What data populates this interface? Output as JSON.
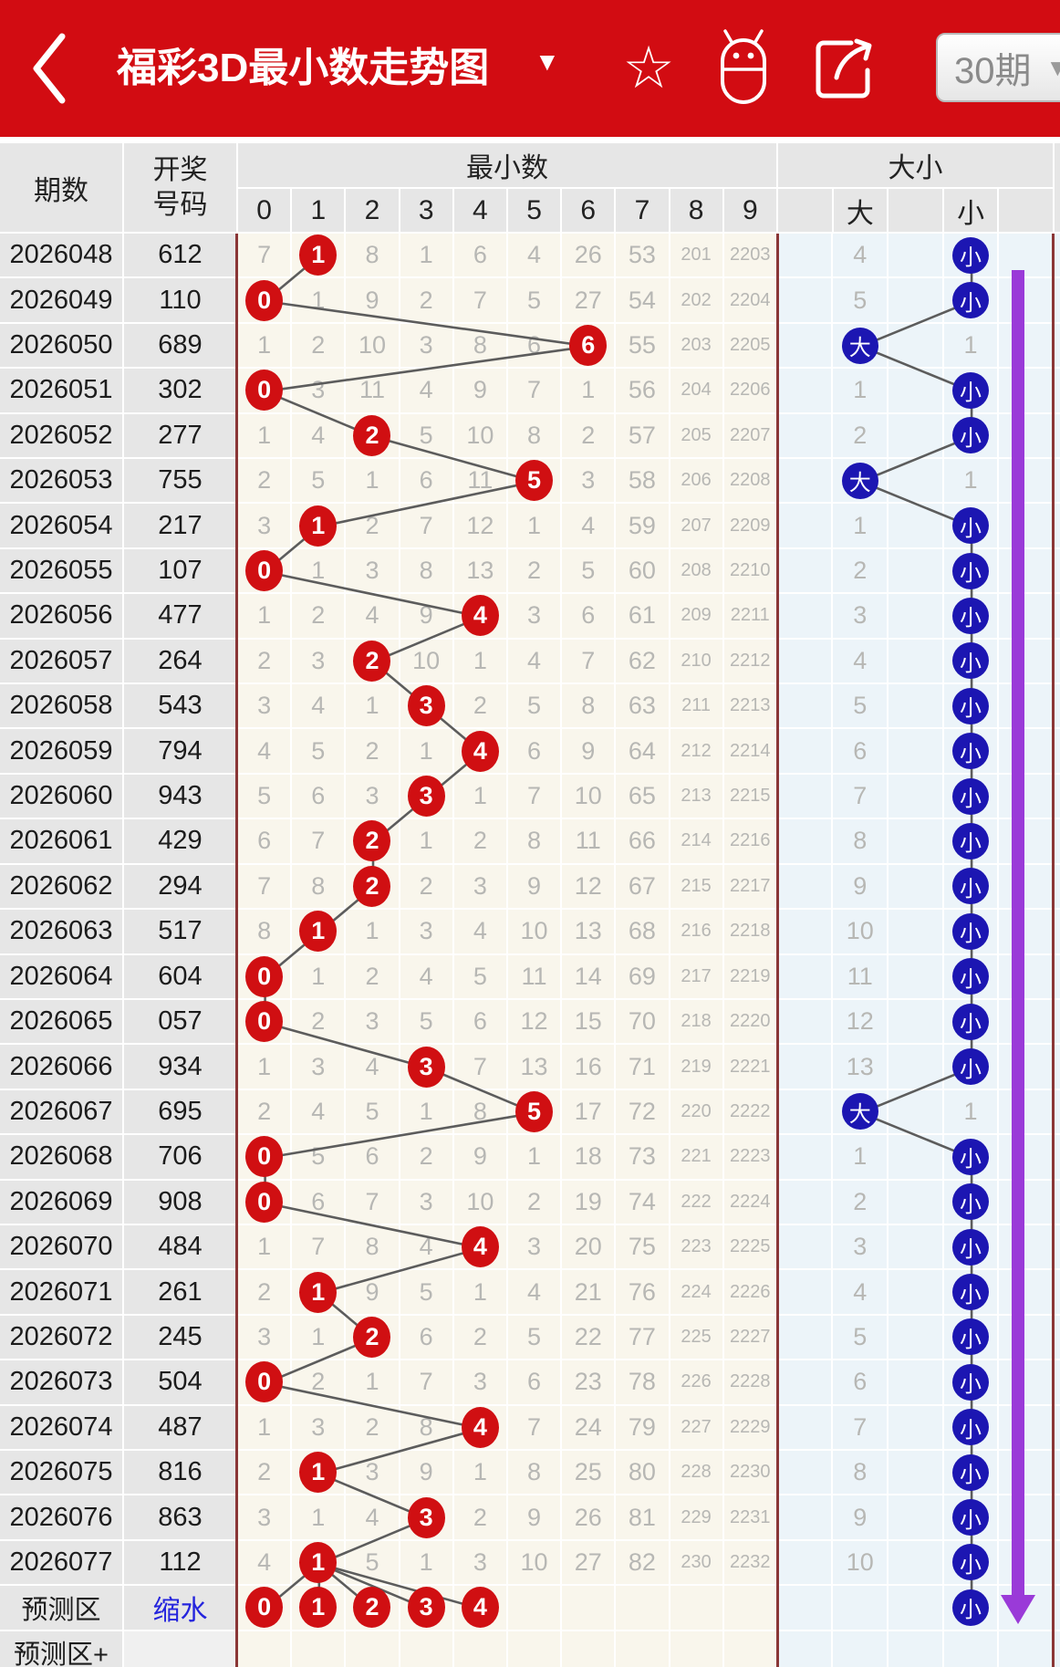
{
  "appbar": {
    "title": "福彩3D最小数走势图",
    "title_caret": "▼",
    "icons": {
      "back": "chevron-left",
      "favorite": "star-outline",
      "android": "android-robot",
      "share": "share-arrow"
    },
    "period_selector": {
      "label": "30期",
      "caret": "▼"
    }
  },
  "colors": {
    "header_red": "#d20c12",
    "red_circle": "#d00f12",
    "blue_circle": "#1c16b2",
    "purple_arrow": "#9a3ad8",
    "maroon_border": "#8a3636",
    "link_blue": "#2424dd"
  },
  "table": {
    "headers": {
      "qishu": "期数",
      "haoma_line1": "开奖",
      "haoma_line2": "号码",
      "group_min": "最小数",
      "group_ds": "大小",
      "digits": [
        "0",
        "1",
        "2",
        "3",
        "4",
        "5",
        "6",
        "7",
        "8",
        "9"
      ],
      "da": "大",
      "xiao": "小"
    },
    "rows": [
      {
        "period": "2026048",
        "code": "612",
        "miss": [
          "7",
          "",
          "8",
          "1",
          "6",
          "4",
          "26",
          "53",
          "201",
          "2203"
        ],
        "hit": 1,
        "big": "4",
        "small": "",
        "ds": "小"
      },
      {
        "period": "2026049",
        "code": "110",
        "miss": [
          "",
          "1",
          "9",
          "2",
          "7",
          "5",
          "27",
          "54",
          "202",
          "2204"
        ],
        "hit": 0,
        "big": "5",
        "small": "",
        "ds": "小"
      },
      {
        "period": "2026050",
        "code": "689",
        "miss": [
          "1",
          "2",
          "10",
          "3",
          "8",
          "6",
          "",
          "55",
          "203",
          "2205"
        ],
        "hit": 6,
        "big": "",
        "small": "1",
        "ds": "大"
      },
      {
        "period": "2026051",
        "code": "302",
        "miss": [
          "",
          "3",
          "11",
          "4",
          "9",
          "7",
          "1",
          "56",
          "204",
          "2206"
        ],
        "hit": 0,
        "big": "1",
        "small": "",
        "ds": "小"
      },
      {
        "period": "2026052",
        "code": "277",
        "miss": [
          "1",
          "4",
          "",
          "5",
          "10",
          "8",
          "2",
          "57",
          "205",
          "2207"
        ],
        "hit": 2,
        "big": "2",
        "small": "",
        "ds": "小"
      },
      {
        "period": "2026053",
        "code": "755",
        "miss": [
          "2",
          "5",
          "1",
          "6",
          "11",
          "",
          "3",
          "58",
          "206",
          "2208"
        ],
        "hit": 5,
        "big": "",
        "small": "1",
        "ds": "大"
      },
      {
        "period": "2026054",
        "code": "217",
        "miss": [
          "3",
          "",
          "2",
          "7",
          "12",
          "1",
          "4",
          "59",
          "207",
          "2209"
        ],
        "hit": 1,
        "big": "1",
        "small": "",
        "ds": "小"
      },
      {
        "period": "2026055",
        "code": "107",
        "miss": [
          "",
          "1",
          "3",
          "8",
          "13",
          "2",
          "5",
          "60",
          "208",
          "2210"
        ],
        "hit": 0,
        "big": "2",
        "small": "",
        "ds": "小"
      },
      {
        "period": "2026056",
        "code": "477",
        "miss": [
          "1",
          "2",
          "4",
          "9",
          "",
          "3",
          "6",
          "61",
          "209",
          "2211"
        ],
        "hit": 4,
        "big": "3",
        "small": "",
        "ds": "小"
      },
      {
        "period": "2026057",
        "code": "264",
        "miss": [
          "2",
          "3",
          "",
          "10",
          "1",
          "4",
          "7",
          "62",
          "210",
          "2212"
        ],
        "hit": 2,
        "big": "4",
        "small": "",
        "ds": "小"
      },
      {
        "period": "2026058",
        "code": "543",
        "miss": [
          "3",
          "4",
          "1",
          "",
          "2",
          "5",
          "8",
          "63",
          "211",
          "2213"
        ],
        "hit": 3,
        "big": "5",
        "small": "",
        "ds": "小"
      },
      {
        "period": "2026059",
        "code": "794",
        "miss": [
          "4",
          "5",
          "2",
          "1",
          "",
          "6",
          "9",
          "64",
          "212",
          "2214"
        ],
        "hit": 4,
        "big": "6",
        "small": "",
        "ds": "小"
      },
      {
        "period": "2026060",
        "code": "943",
        "miss": [
          "5",
          "6",
          "3",
          "",
          "1",
          "7",
          "10",
          "65",
          "213",
          "2215"
        ],
        "hit": 3,
        "big": "7",
        "small": "",
        "ds": "小"
      },
      {
        "period": "2026061",
        "code": "429",
        "miss": [
          "6",
          "7",
          "",
          "1",
          "2",
          "8",
          "11",
          "66",
          "214",
          "2216"
        ],
        "hit": 2,
        "big": "8",
        "small": "",
        "ds": "小"
      },
      {
        "period": "2026062",
        "code": "294",
        "miss": [
          "7",
          "8",
          "",
          "2",
          "3",
          "9",
          "12",
          "67",
          "215",
          "2217"
        ],
        "hit": 2,
        "big": "9",
        "small": "",
        "ds": "小"
      },
      {
        "period": "2026063",
        "code": "517",
        "miss": [
          "8",
          "",
          "1",
          "3",
          "4",
          "10",
          "13",
          "68",
          "216",
          "2218"
        ],
        "hit": 1,
        "big": "10",
        "small": "",
        "ds": "小"
      },
      {
        "period": "2026064",
        "code": "604",
        "miss": [
          "",
          "1",
          "2",
          "4",
          "5",
          "11",
          "14",
          "69",
          "217",
          "2219"
        ],
        "hit": 0,
        "big": "11",
        "small": "",
        "ds": "小"
      },
      {
        "period": "2026065",
        "code": "057",
        "miss": [
          "",
          "2",
          "3",
          "5",
          "6",
          "12",
          "15",
          "70",
          "218",
          "2220"
        ],
        "hit": 0,
        "big": "12",
        "small": "",
        "ds": "小"
      },
      {
        "period": "2026066",
        "code": "934",
        "miss": [
          "1",
          "3",
          "4",
          "",
          "7",
          "13",
          "16",
          "71",
          "219",
          "2221"
        ],
        "hit": 3,
        "big": "13",
        "small": "",
        "ds": "小"
      },
      {
        "period": "2026067",
        "code": "695",
        "miss": [
          "2",
          "4",
          "5",
          "1",
          "8",
          "",
          "17",
          "72",
          "220",
          "2222"
        ],
        "hit": 5,
        "big": "",
        "small": "1",
        "ds": "大"
      },
      {
        "period": "2026068",
        "code": "706",
        "miss": [
          "",
          "5",
          "6",
          "2",
          "9",
          "1",
          "18",
          "73",
          "221",
          "2223"
        ],
        "hit": 0,
        "big": "1",
        "small": "",
        "ds": "小"
      },
      {
        "period": "2026069",
        "code": "908",
        "miss": [
          "",
          "6",
          "7",
          "3",
          "10",
          "2",
          "19",
          "74",
          "222",
          "2224"
        ],
        "hit": 0,
        "big": "2",
        "small": "",
        "ds": "小"
      },
      {
        "period": "2026070",
        "code": "484",
        "miss": [
          "1",
          "7",
          "8",
          "4",
          "",
          "3",
          "20",
          "75",
          "223",
          "2225"
        ],
        "hit": 4,
        "big": "3",
        "small": "",
        "ds": "小"
      },
      {
        "period": "2026071",
        "code": "261",
        "miss": [
          "2",
          "",
          "9",
          "5",
          "1",
          "4",
          "21",
          "76",
          "224",
          "2226"
        ],
        "hit": 1,
        "big": "4",
        "small": "",
        "ds": "小"
      },
      {
        "period": "2026072",
        "code": "245",
        "miss": [
          "3",
          "1",
          "",
          "6",
          "2",
          "5",
          "22",
          "77",
          "225",
          "2227"
        ],
        "hit": 2,
        "big": "5",
        "small": "",
        "ds": "小"
      },
      {
        "period": "2026073",
        "code": "504",
        "miss": [
          "",
          "2",
          "1",
          "7",
          "3",
          "6",
          "23",
          "78",
          "226",
          "2228"
        ],
        "hit": 0,
        "big": "6",
        "small": "",
        "ds": "小"
      },
      {
        "period": "2026074",
        "code": "487",
        "miss": [
          "1",
          "3",
          "2",
          "8",
          "",
          "7",
          "24",
          "79",
          "227",
          "2229"
        ],
        "hit": 4,
        "big": "7",
        "small": "",
        "ds": "小"
      },
      {
        "period": "2026075",
        "code": "816",
        "miss": [
          "2",
          "",
          "3",
          "9",
          "1",
          "8",
          "25",
          "80",
          "228",
          "2230"
        ],
        "hit": 1,
        "big": "8",
        "small": "",
        "ds": "小"
      },
      {
        "period": "2026076",
        "code": "863",
        "miss": [
          "3",
          "1",
          "4",
          "",
          "2",
          "9",
          "26",
          "81",
          "229",
          "2231"
        ],
        "hit": 3,
        "big": "9",
        "small": "",
        "ds": "小"
      },
      {
        "period": "2026077",
        "code": "112",
        "miss": [
          "4",
          "",
          "5",
          "1",
          "3",
          "10",
          "27",
          "82",
          "230",
          "2232"
        ],
        "hit": 1,
        "big": "10",
        "small": "",
        "ds": "小"
      }
    ],
    "forecast_row": {
      "label": "预测区",
      "link": "缩水",
      "hits": [
        0,
        1,
        2,
        3,
        4
      ],
      "ds": "小"
    },
    "forecast_plus_row": {
      "label": "预测区+"
    }
  }
}
